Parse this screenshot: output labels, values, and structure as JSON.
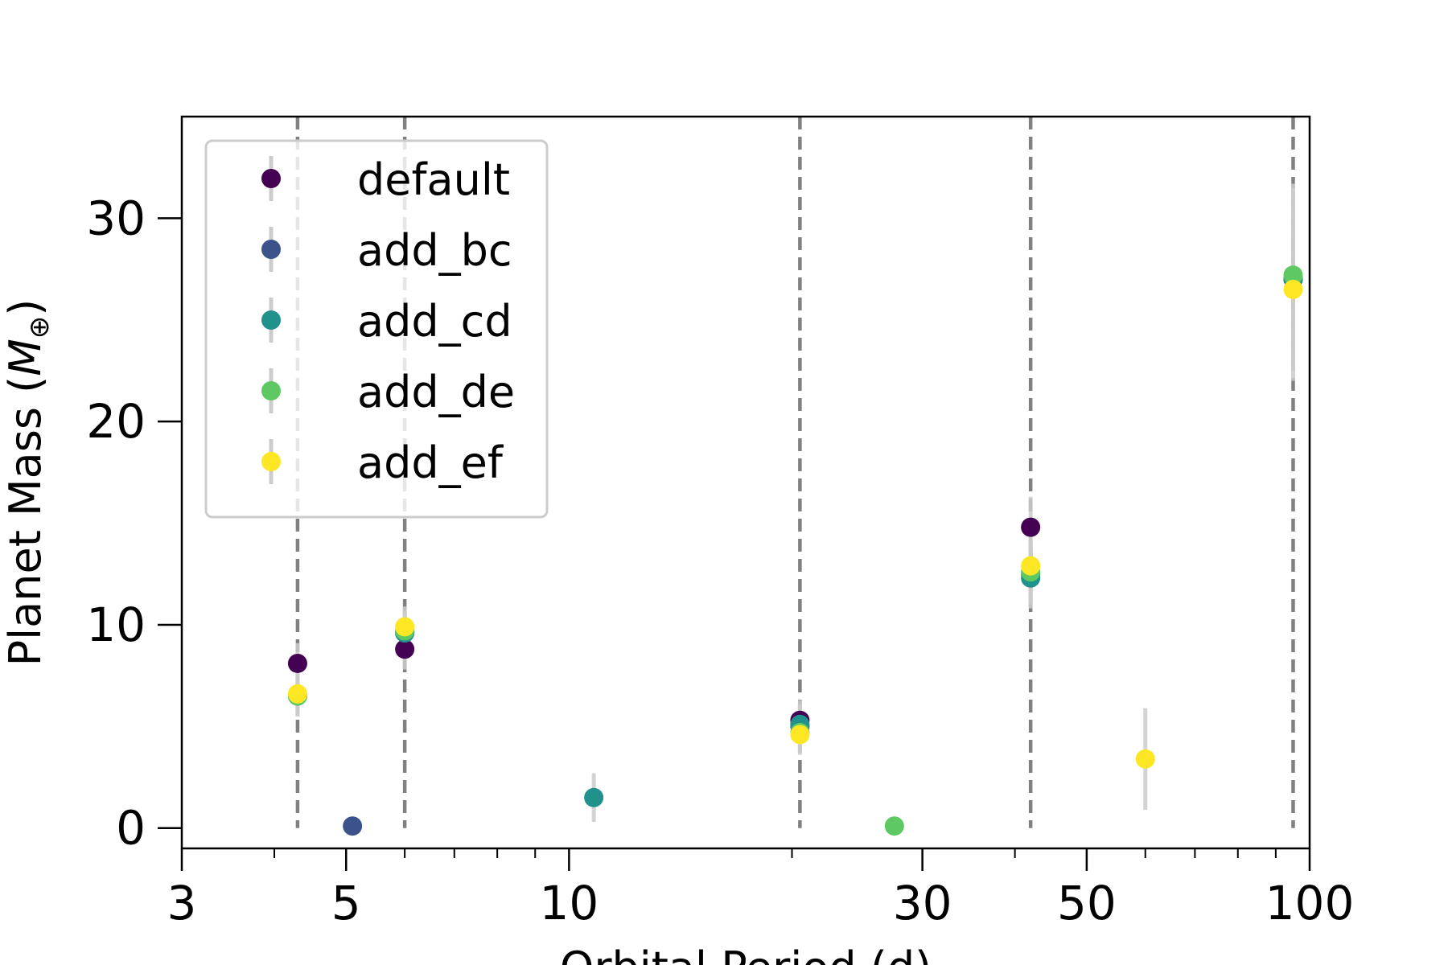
{
  "chart_data": {
    "type": "scatter",
    "xscale": "log",
    "xlim": [
      3,
      100
    ],
    "ylim": [
      -1,
      35
    ],
    "xlabel": "Orbital Period (d)",
    "ylabel_main": "Planet Mass (",
    "ylabel_symbol": "M",
    "ylabel_sub": "⊕",
    "ylabel_close": ")",
    "xticks": [
      3,
      5,
      10,
      30,
      50,
      100
    ],
    "xtick_labels": [
      "3",
      "5",
      "10",
      "30",
      "50",
      "100"
    ],
    "yticks": [
      0,
      10,
      20,
      30
    ],
    "ytick_labels": [
      "0",
      "10",
      "20",
      "30"
    ],
    "grid": false,
    "legend_position": "top-left",
    "reference_lines_x": [
      4.3,
      6.0,
      20.5,
      42.0,
      95.0
    ],
    "series": [
      {
        "name": "default",
        "color": "#440154",
        "points": [
          {
            "x": 4.3,
            "y": 8.1,
            "err": 1.0
          },
          {
            "x": 6.0,
            "y": 8.8,
            "err": 1.0
          },
          {
            "x": 20.5,
            "y": 5.3,
            "err": 1.0
          },
          {
            "x": 42.0,
            "y": 14.8,
            "err": 1.5
          },
          {
            "x": 95.0,
            "y": 27.0,
            "err": 4.5
          }
        ]
      },
      {
        "name": "add_bc",
        "color": "#3b528b",
        "points": [
          {
            "x": 4.3,
            "y": 6.5,
            "err": 1.0
          },
          {
            "x": 5.1,
            "y": 0.1,
            "err": 0.0
          },
          {
            "x": 6.0,
            "y": 9.6,
            "err": 1.0
          },
          {
            "x": 20.5,
            "y": 5.0,
            "err": 1.0
          },
          {
            "x": 42.0,
            "y": 12.5,
            "err": 1.5
          },
          {
            "x": 95.0,
            "y": 27.0,
            "err": 4.5
          }
        ]
      },
      {
        "name": "add_cd",
        "color": "#21918c",
        "points": [
          {
            "x": 4.3,
            "y": 6.5,
            "err": 1.0
          },
          {
            "x": 6.0,
            "y": 9.6,
            "err": 1.0
          },
          {
            "x": 10.8,
            "y": 1.5,
            "err": 1.2
          },
          {
            "x": 20.5,
            "y": 5.1,
            "err": 1.0
          },
          {
            "x": 42.0,
            "y": 12.3,
            "err": 1.5
          },
          {
            "x": 95.0,
            "y": 27.0,
            "err": 4.5
          }
        ]
      },
      {
        "name": "add_de",
        "color": "#5ec962",
        "points": [
          {
            "x": 4.3,
            "y": 6.5,
            "err": 1.0
          },
          {
            "x": 6.0,
            "y": 9.7,
            "err": 1.0
          },
          {
            "x": 20.5,
            "y": 4.7,
            "err": 1.0
          },
          {
            "x": 27.5,
            "y": 0.1,
            "err": 0.0
          },
          {
            "x": 42.0,
            "y": 12.6,
            "err": 1.5
          },
          {
            "x": 95.0,
            "y": 27.2,
            "err": 4.5
          }
        ]
      },
      {
        "name": "add_ef",
        "color": "#fde725",
        "points": [
          {
            "x": 4.3,
            "y": 6.6,
            "err": 1.0
          },
          {
            "x": 6.0,
            "y": 9.9,
            "err": 1.0
          },
          {
            "x": 20.5,
            "y": 4.6,
            "err": 1.0
          },
          {
            "x": 42.0,
            "y": 12.9,
            "err": 1.5
          },
          {
            "x": 60.0,
            "y": 3.4,
            "err": 2.5
          },
          {
            "x": 95.0,
            "y": 26.5,
            "err": 4.5
          }
        ]
      }
    ]
  }
}
